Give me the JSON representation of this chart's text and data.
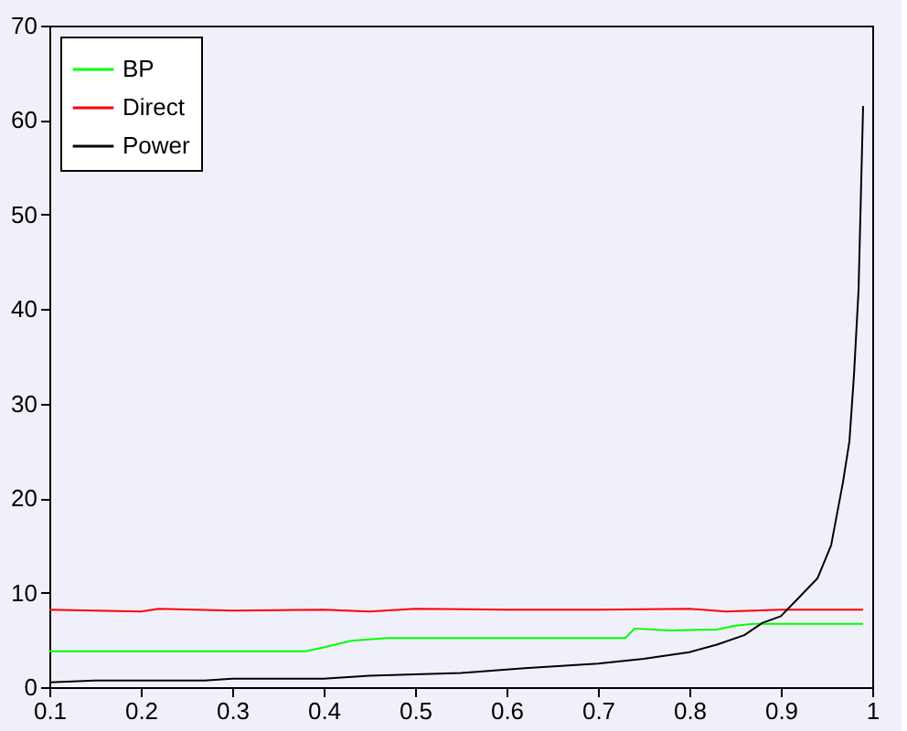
{
  "chart_data": {
    "type": "line",
    "xlim": [
      0.1,
      1.0
    ],
    "ylim": [
      0,
      70
    ],
    "xticks": [
      0.1,
      0.2,
      0.3,
      0.4,
      0.5,
      0.6,
      0.7,
      0.8,
      0.9,
      {
        "value": 1,
        "label": "1"
      }
    ],
    "yticks": [
      0,
      10,
      20,
      30,
      40,
      50,
      60,
      70
    ],
    "grid": false,
    "legend": "top left",
    "line_style": "solid",
    "marker": "none",
    "series": [
      {
        "name": "BP",
        "color": "#00ff00",
        "x": [
          0.1,
          0.38,
          0.4,
          0.43,
          0.47,
          0.73,
          0.74,
          0.78,
          0.83,
          0.85,
          0.87,
          0.99
        ],
        "values": [
          3.8,
          3.8,
          4.2,
          4.9,
          5.2,
          5.2,
          6.2,
          6.0,
          6.1,
          6.5,
          6.7,
          6.7
        ]
      },
      {
        "name": "Direct",
        "color": "#ff0000",
        "x": [
          0.1,
          0.2,
          0.22,
          0.3,
          0.4,
          0.45,
          0.5,
          0.6,
          0.7,
          0.8,
          0.84,
          0.9,
          0.99
        ],
        "values": [
          8.2,
          8.0,
          8.3,
          8.1,
          8.2,
          8.0,
          8.3,
          8.2,
          8.2,
          8.3,
          8.0,
          8.2,
          8.2
        ]
      },
      {
        "name": "Power",
        "color": "#000000",
        "x": [
          0.1,
          0.15,
          0.27,
          0.3,
          0.4,
          0.45,
          0.55,
          0.62,
          0.7,
          0.75,
          0.8,
          0.83,
          0.86,
          0.88,
          0.9,
          0.92,
          0.94,
          0.955,
          0.968,
          0.975,
          0.98,
          0.985,
          0.99
        ],
        "values": [
          0.5,
          0.7,
          0.7,
          0.9,
          0.9,
          1.2,
          1.5,
          2.0,
          2.5,
          3.0,
          3.7,
          4.5,
          5.5,
          6.8,
          7.5,
          9.5,
          11.5,
          15,
          21.7,
          26,
          33,
          42,
          61.5
        ]
      }
    ]
  }
}
